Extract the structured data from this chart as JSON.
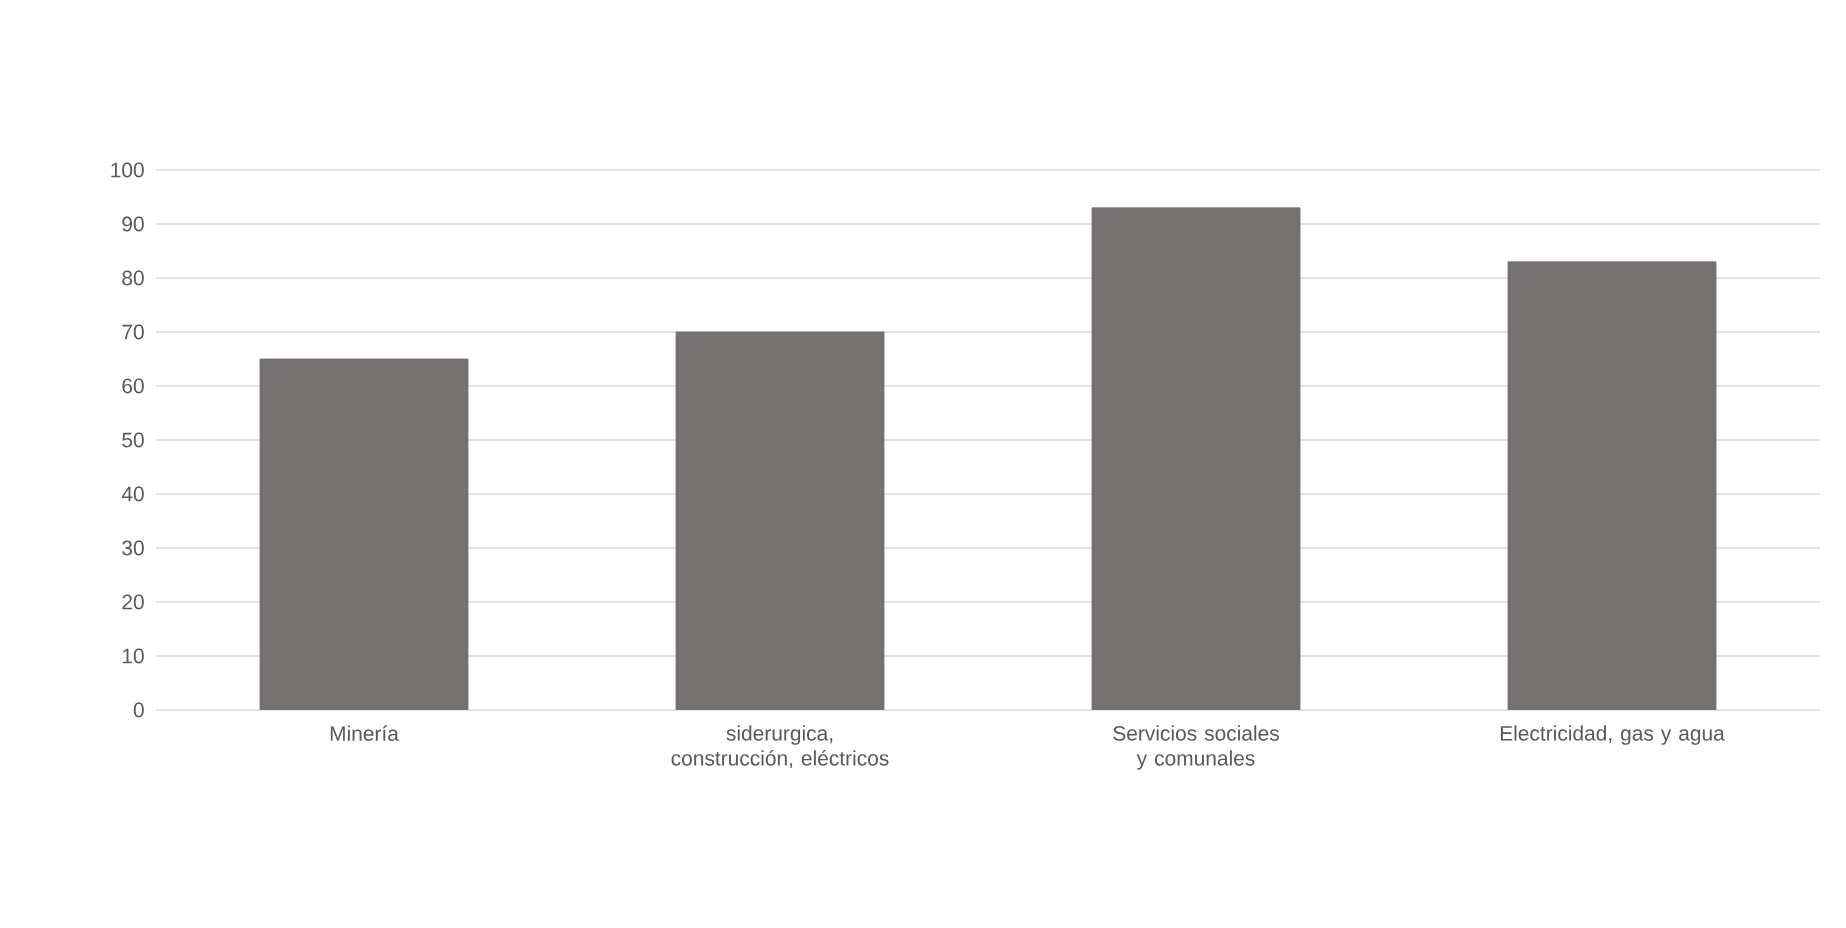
{
  "chart_data": {
    "type": "bar",
    "categories": [
      "Minería",
      "siderurgica, construcción, eléctricos",
      "Servicios sociales y comunales",
      "Electricidad, gas y agua"
    ],
    "values": [
      65,
      70,
      93,
      83
    ],
    "color": "#767171",
    "ylim": [
      0,
      100
    ],
    "yticks": [
      0,
      10,
      20,
      30,
      40,
      50,
      60,
      70,
      80,
      90,
      100
    ],
    "grid": "y"
  }
}
